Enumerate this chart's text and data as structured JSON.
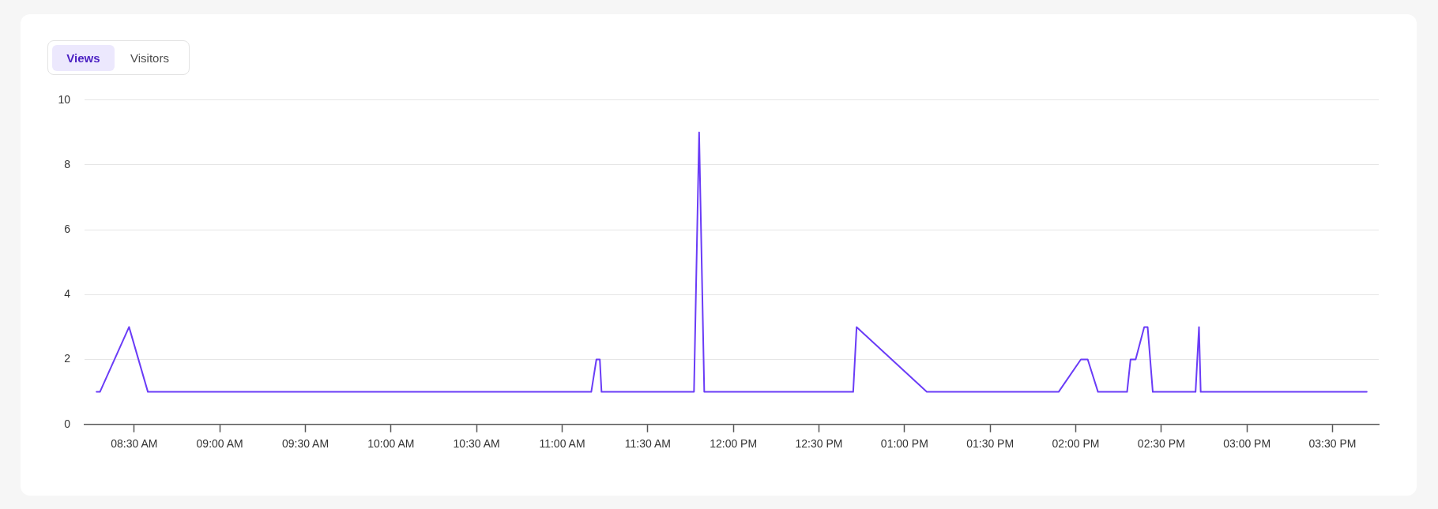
{
  "chart_data": {
    "type": "line",
    "annotations": [
      "Views",
      "Visitors"
    ],
    "x": [
      8.28,
      8.3,
      8.47,
      8.58,
      11.17,
      11.2,
      11.22,
      11.23,
      11.77,
      11.8,
      11.83,
      12.7,
      12.72,
      13.13,
      13.9,
      14.03,
      14.07,
      14.13,
      14.3,
      14.32,
      14.35,
      14.4,
      14.42,
      14.45,
      14.7,
      14.72,
      14.73,
      15.7
    ],
    "values": [
      1,
      1,
      3,
      1,
      1,
      2,
      2,
      1,
      1,
      9,
      1,
      1,
      3,
      1,
      1,
      2,
      2,
      1,
      1,
      2,
      2,
      3,
      3,
      1,
      1,
      3,
      1,
      1
    ],
    "color": "#6a3cf7",
    "xlim": [
      8.21,
      15.77
    ],
    "xticks": [
      {
        "value": 8.5,
        "label": "08:30 AM"
      },
      {
        "value": 9,
        "label": "09:00 AM"
      },
      {
        "value": 9.5,
        "label": "09:30 AM"
      },
      {
        "value": 10,
        "label": "10:00 AM"
      },
      {
        "value": 10.5,
        "label": "10:30 AM"
      },
      {
        "value": 11,
        "label": "11:00 AM"
      },
      {
        "value": 11.5,
        "label": "11:30 AM"
      },
      {
        "value": 12,
        "label": "12:00 PM"
      },
      {
        "value": 12.5,
        "label": "12:30 PM"
      },
      {
        "value": 13,
        "label": "01:00 PM"
      },
      {
        "value": 13.5,
        "label": "01:30 PM"
      },
      {
        "value": 14,
        "label": "02:00 PM"
      },
      {
        "value": 14.5,
        "label": "02:30 PM"
      },
      {
        "value": 15,
        "label": "03:00 PM"
      },
      {
        "value": 15.5,
        "label": "03:30 PM"
      }
    ],
    "ylim": [
      0,
      10
    ],
    "yticks": [
      0,
      2,
      4,
      6,
      8,
      10
    ],
    "grid": "y",
    "legend": false,
    "marker": "none",
    "line_style": "solid"
  }
}
